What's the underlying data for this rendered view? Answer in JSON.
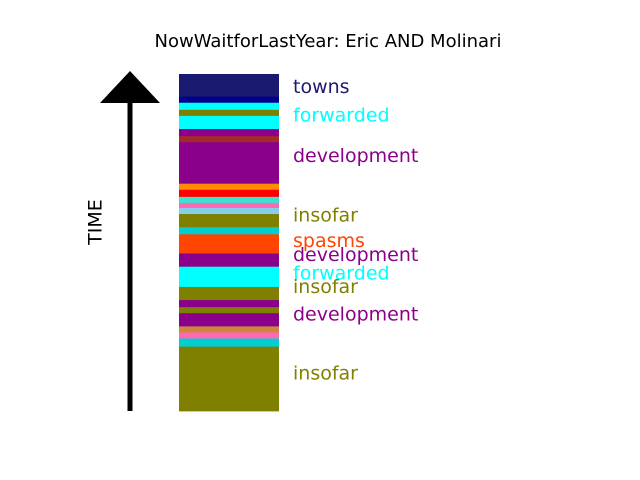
{
  "title": "NowWaitforLastYear: Eric AND Molinari",
  "axis": {
    "label": "TIME"
  },
  "colors": {
    "arrow": "#000000",
    "background": "#ffffff"
  },
  "chart_data": {
    "type": "stacked-timeline",
    "title": "NowWaitforLastYear: Eric AND Molinari",
    "ylabel": "TIME",
    "segments": [
      {
        "color": "#808000",
        "height": 64
      },
      {
        "color": "#00CED1",
        "height": 8
      },
      {
        "color": "#FF69B4",
        "height": 6
      },
      {
        "color": "#CD853F",
        "height": 6
      },
      {
        "color": "#8B008B",
        "height": 13
      },
      {
        "color": "#808000",
        "height": 6
      },
      {
        "color": "#8B008B",
        "height": 7
      },
      {
        "color": "#808000",
        "height": 13
      },
      {
        "color": "#00FFFF",
        "height": 20
      },
      {
        "color": "#8B008B",
        "height": 13
      },
      {
        "color": "#FF4500",
        "height": 19
      },
      {
        "color": "#00CED1",
        "height": 7
      },
      {
        "color": "#808000",
        "height": 13
      },
      {
        "color": "#87CEEB",
        "height": 6
      },
      {
        "color": "#FF69B4",
        "height": 5
      },
      {
        "color": "#40E0D0",
        "height": 6
      },
      {
        "color": "#FF0000",
        "height": 7
      },
      {
        "color": "#FF8C00",
        "height": 6
      },
      {
        "color": "#8B008B",
        "height": 41
      },
      {
        "color": "#A52A2A",
        "height": 6
      },
      {
        "color": "#8B008B",
        "height": 7
      },
      {
        "color": "#00FFFF",
        "height": 13
      },
      {
        "color": "#808000",
        "height": 6
      },
      {
        "color": "#00FFFF",
        "height": 7
      },
      {
        "color": "#00008B",
        "height": 6
      },
      {
        "color": "#191970",
        "height": 22
      }
    ],
    "labels": [
      {
        "text": "towns",
        "color": "#191970",
        "position": 0.96
      },
      {
        "text": "forwarded",
        "color": "#00FFFF",
        "position": 0.876
      },
      {
        "text": "development",
        "color": "#8B008B",
        "position": 0.755
      },
      {
        "text": "insofar",
        "color": "#808000",
        "position": 0.578
      },
      {
        "text": "spasms",
        "color": "#FF4500",
        "position": 0.503
      },
      {
        "text": "development",
        "color": "#8B008B",
        "position": 0.462
      },
      {
        "text": "forwarded",
        "color": "#00FFFF",
        "position": 0.407
      },
      {
        "text": "insofar",
        "color": "#808000",
        "position": 0.366
      },
      {
        "text": "development",
        "color": "#8B008B",
        "position": 0.285
      },
      {
        "text": "insofar",
        "color": "#808000",
        "position": 0.11
      }
    ]
  }
}
